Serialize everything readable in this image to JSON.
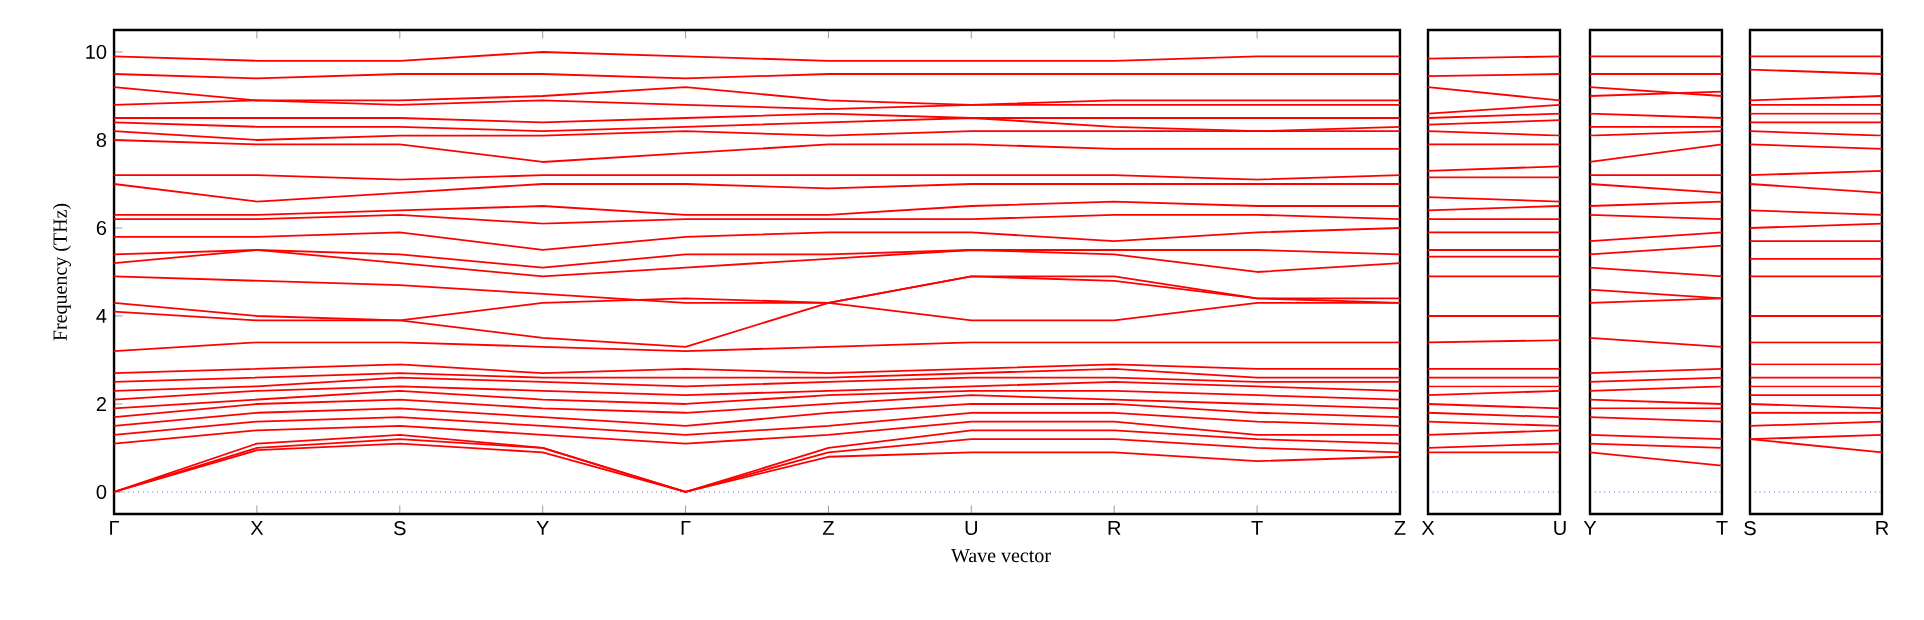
{
  "chart_data": [
    {
      "type": "line",
      "xlabel": "Wave vector",
      "ylabel": "Frequency (THz)",
      "categories": [
        "Γ",
        "X",
        "S",
        "Y",
        "Γ",
        "Z",
        "U",
        "R",
        "T",
        "Z"
      ],
      "ylim": [
        -0.5,
        10.5
      ],
      "yticks": [
        0,
        2,
        4,
        6,
        8,
        10
      ],
      "ref_lines": [
        {
          "axis": "y",
          "value": 0,
          "color": "#0000ff",
          "line_style": "dotted"
        }
      ],
      "series": [
        {
          "color": "#ff0000",
          "values": [
            0,
            0.95,
            1.1,
            0.9,
            0,
            0.8,
            0.9,
            0.9,
            0.7,
            0.8
          ]
        },
        {
          "color": "#ff0000",
          "values": [
            0,
            1.0,
            1.2,
            1.0,
            0,
            0.9,
            1.2,
            1.2,
            1.0,
            0.9
          ]
        },
        {
          "color": "#ff0000",
          "values": [
            0,
            1.1,
            1.3,
            1.0,
            0,
            1.0,
            1.4,
            1.4,
            1.2,
            1.1
          ]
        },
        {
          "color": "#ff0000",
          "values": [
            1.1,
            1.4,
            1.5,
            1.3,
            1.1,
            1.3,
            1.6,
            1.6,
            1.3,
            1.3
          ]
        },
        {
          "color": "#ff0000",
          "values": [
            1.3,
            1.6,
            1.7,
            1.5,
            1.3,
            1.5,
            1.8,
            1.8,
            1.6,
            1.5
          ]
        },
        {
          "color": "#ff0000",
          "values": [
            1.5,
            1.8,
            1.9,
            1.7,
            1.5,
            1.8,
            2.0,
            2.0,
            1.8,
            1.7
          ]
        },
        {
          "color": "#ff0000",
          "values": [
            1.7,
            2.0,
            2.1,
            1.9,
            1.8,
            2.0,
            2.2,
            2.1,
            2.0,
            1.9
          ]
        },
        {
          "color": "#ff0000",
          "values": [
            1.9,
            2.1,
            2.3,
            2.1,
            2.0,
            2.2,
            2.3,
            2.3,
            2.2,
            2.1
          ]
        },
        {
          "color": "#ff0000",
          "values": [
            2.1,
            2.3,
            2.4,
            2.3,
            2.2,
            2.3,
            2.4,
            2.5,
            2.4,
            2.3
          ]
        },
        {
          "color": "#ff0000",
          "values": [
            2.3,
            2.4,
            2.6,
            2.5,
            2.4,
            2.5,
            2.6,
            2.6,
            2.5,
            2.5
          ]
        },
        {
          "color": "#ff0000",
          "values": [
            2.5,
            2.6,
            2.7,
            2.6,
            2.6,
            2.6,
            2.7,
            2.8,
            2.6,
            2.6
          ]
        },
        {
          "color": "#ff0000",
          "values": [
            2.7,
            2.8,
            2.9,
            2.7,
            2.8,
            2.7,
            2.8,
            2.9,
            2.8,
            2.8
          ]
        },
        {
          "color": "#ff0000",
          "values": [
            3.2,
            3.4,
            3.4,
            3.3,
            3.2,
            3.3,
            3.4,
            3.4,
            3.4,
            3.4
          ]
        },
        {
          "color": "#ff0000",
          "values": [
            4.1,
            3.9,
            3.9,
            3.5,
            3.3,
            4.3,
            3.9,
            3.9,
            4.3,
            4.3
          ]
        },
        {
          "color": "#ff0000",
          "values": [
            4.3,
            4.0,
            3.9,
            4.3,
            4.4,
            4.3,
            4.9,
            4.9,
            4.4,
            4.3
          ]
        },
        {
          "color": "#ff0000",
          "values": [
            4.9,
            4.8,
            4.7,
            4.5,
            4.3,
            4.3,
            4.9,
            4.8,
            4.4,
            4.4
          ]
        },
        {
          "color": "#ff0000",
          "values": [
            5.2,
            5.5,
            5.2,
            4.9,
            5.1,
            5.3,
            5.5,
            5.4,
            5.0,
            5.2
          ]
        },
        {
          "color": "#ff0000",
          "values": [
            5.4,
            5.5,
            5.4,
            5.1,
            5.4,
            5.4,
            5.5,
            5.5,
            5.5,
            5.4
          ]
        },
        {
          "color": "#ff0000",
          "values": [
            5.8,
            5.8,
            5.9,
            5.5,
            5.8,
            5.9,
            5.9,
            5.7,
            5.9,
            6.0
          ]
        },
        {
          "color": "#ff0000",
          "values": [
            6.2,
            6.2,
            6.3,
            6.1,
            6.2,
            6.2,
            6.2,
            6.3,
            6.3,
            6.2
          ]
        },
        {
          "color": "#ff0000",
          "values": [
            6.3,
            6.3,
            6.4,
            6.5,
            6.3,
            6.3,
            6.5,
            6.6,
            6.5,
            6.5
          ]
        },
        {
          "color": "#ff0000",
          "values": [
            7.0,
            6.6,
            6.8,
            7.0,
            7.0,
            6.9,
            7.0,
            7.0,
            7.0,
            7.0
          ]
        },
        {
          "color": "#ff0000",
          "values": [
            7.2,
            7.2,
            7.1,
            7.2,
            7.2,
            7.2,
            7.2,
            7.2,
            7.1,
            7.2
          ]
        },
        {
          "color": "#ff0000",
          "values": [
            8.0,
            7.9,
            7.9,
            7.5,
            7.7,
            7.9,
            7.9,
            7.8,
            7.8,
            7.8
          ]
        },
        {
          "color": "#ff0000",
          "values": [
            8.2,
            8.0,
            8.1,
            8.1,
            8.2,
            8.1,
            8.2,
            8.2,
            8.2,
            8.2
          ]
        },
        {
          "color": "#ff0000",
          "values": [
            8.4,
            8.3,
            8.3,
            8.2,
            8.3,
            8.4,
            8.5,
            8.3,
            8.2,
            8.3
          ]
        },
        {
          "color": "#ff0000",
          "values": [
            8.5,
            8.5,
            8.5,
            8.4,
            8.5,
            8.6,
            8.5,
            8.5,
            8.5,
            8.5
          ]
        },
        {
          "color": "#ff0000",
          "values": [
            8.8,
            8.9,
            8.8,
            8.9,
            8.8,
            8.7,
            8.8,
            8.8,
            8.8,
            8.8
          ]
        },
        {
          "color": "#ff0000",
          "values": [
            9.2,
            8.9,
            8.9,
            9.0,
            9.2,
            8.9,
            8.8,
            8.9,
            8.9,
            8.9
          ]
        },
        {
          "color": "#ff0000",
          "values": [
            9.5,
            9.4,
            9.5,
            9.5,
            9.4,
            9.5,
            9.5,
            9.5,
            9.5,
            9.5
          ]
        },
        {
          "color": "#ff0000",
          "values": [
            9.9,
            9.8,
            9.8,
            10.0,
            9.9,
            9.8,
            9.8,
            9.8,
            9.9,
            9.9
          ]
        }
      ]
    },
    {
      "type": "line",
      "tick_labels": "x",
      "categories": [
        "X",
        "U"
      ],
      "yticks": [
        0,
        2,
        4,
        6,
        8,
        10
      ],
      "ref_lines": [
        {
          "axis": "y",
          "value": 0,
          "color": "#0000ff",
          "line_style": "dotted"
        }
      ],
      "series": [
        {
          "color": "#ff0000",
          "values": [
            9.85,
            9.9
          ]
        },
        {
          "color": "#ff0000",
          "values": [
            9.45,
            9.5
          ]
        },
        {
          "color": "#ff0000",
          "values": [
            9.2,
            8.9
          ]
        },
        {
          "color": "#ff0000",
          "values": [
            8.6,
            8.8
          ]
        },
        {
          "color": "#ff0000",
          "values": [
            8.5,
            8.6
          ]
        },
        {
          "color": "#ff0000",
          "values": [
            8.35,
            8.45
          ]
        },
        {
          "color": "#ff0000",
          "values": [
            8.2,
            8.1
          ]
        },
        {
          "color": "#ff0000",
          "values": [
            7.9,
            7.9
          ]
        },
        {
          "color": "#ff0000",
          "values": [
            7.3,
            7.4
          ]
        },
        {
          "color": "#ff0000",
          "values": [
            7.15,
            7.15
          ]
        },
        {
          "color": "#ff0000",
          "values": [
            6.7,
            6.6
          ]
        },
        {
          "color": "#ff0000",
          "values": [
            6.4,
            6.5
          ]
        },
        {
          "color": "#ff0000",
          "values": [
            6.2,
            6.2
          ]
        },
        {
          "color": "#ff0000",
          "values": [
            5.9,
            5.9
          ]
        },
        {
          "color": "#ff0000",
          "values": [
            5.5,
            5.5
          ]
        },
        {
          "color": "#ff0000",
          "values": [
            5.35,
            5.35
          ]
        },
        {
          "color": "#ff0000",
          "values": [
            4.9,
            4.9
          ]
        },
        {
          "color": "#ff0000",
          "values": [
            4.0,
            4.0
          ]
        },
        {
          "color": "#ff0000",
          "values": [
            3.4,
            3.45
          ]
        },
        {
          "color": "#ff0000",
          "values": [
            2.8,
            2.8
          ]
        },
        {
          "color": "#ff0000",
          "values": [
            2.6,
            2.6
          ]
        },
        {
          "color": "#ff0000",
          "values": [
            2.4,
            2.4
          ]
        },
        {
          "color": "#ff0000",
          "values": [
            2.2,
            2.3
          ]
        },
        {
          "color": "#ff0000",
          "values": [
            2.0,
            1.9
          ]
        },
        {
          "color": "#ff0000",
          "values": [
            1.8,
            1.7
          ]
        },
        {
          "color": "#ff0000",
          "values": [
            1.6,
            1.5
          ]
        },
        {
          "color": "#ff0000",
          "values": [
            1.3,
            1.4
          ]
        },
        {
          "color": "#ff0000",
          "values": [
            1.0,
            1.1
          ]
        },
        {
          "color": "#ff0000",
          "values": [
            0.9,
            0.9
          ]
        }
      ]
    },
    {
      "type": "line",
      "tick_labels": "x",
      "categories": [
        "Y",
        "T"
      ],
      "yticks": [
        0,
        2,
        4,
        6,
        8,
        10
      ],
      "ref_lines": [
        {
          "axis": "y",
          "value": 0,
          "color": "#0000ff",
          "line_style": "dotted"
        }
      ],
      "series": [
        {
          "color": "#ff0000",
          "values": [
            9.9,
            9.9
          ]
        },
        {
          "color": "#ff0000",
          "values": [
            9.5,
            9.5
          ]
        },
        {
          "color": "#ff0000",
          "values": [
            9.2,
            9.0
          ]
        },
        {
          "color": "#ff0000",
          "values": [
            9.0,
            9.1
          ]
        },
        {
          "color": "#ff0000",
          "values": [
            8.6,
            8.5
          ]
        },
        {
          "color": "#ff0000",
          "values": [
            8.3,
            8.3
          ]
        },
        {
          "color": "#ff0000",
          "values": [
            8.1,
            8.2
          ]
        },
        {
          "color": "#ff0000",
          "values": [
            7.5,
            7.9
          ]
        },
        {
          "color": "#ff0000",
          "values": [
            7.2,
            7.2
          ]
        },
        {
          "color": "#ff0000",
          "values": [
            7.0,
            6.8
          ]
        },
        {
          "color": "#ff0000",
          "values": [
            6.5,
            6.6
          ]
        },
        {
          "color": "#ff0000",
          "values": [
            6.3,
            6.2
          ]
        },
        {
          "color": "#ff0000",
          "values": [
            5.7,
            5.9
          ]
        },
        {
          "color": "#ff0000",
          "values": [
            5.4,
            5.6
          ]
        },
        {
          "color": "#ff0000",
          "values": [
            5.1,
            4.9
          ]
        },
        {
          "color": "#ff0000",
          "values": [
            4.6,
            4.4
          ]
        },
        {
          "color": "#ff0000",
          "values": [
            4.3,
            4.4
          ]
        },
        {
          "color": "#ff0000",
          "values": [
            3.5,
            3.3
          ]
        },
        {
          "color": "#ff0000",
          "values": [
            2.7,
            2.8
          ]
        },
        {
          "color": "#ff0000",
          "values": [
            2.5,
            2.6
          ]
        },
        {
          "color": "#ff0000",
          "values": [
            2.3,
            2.4
          ]
        },
        {
          "color": "#ff0000",
          "values": [
            2.1,
            2.0
          ]
        },
        {
          "color": "#ff0000",
          "values": [
            1.9,
            1.9
          ]
        },
        {
          "color": "#ff0000",
          "values": [
            1.7,
            1.6
          ]
        },
        {
          "color": "#ff0000",
          "values": [
            1.3,
            1.2
          ]
        },
        {
          "color": "#ff0000",
          "values": [
            1.1,
            1.0
          ]
        },
        {
          "color": "#ff0000",
          "values": [
            0.9,
            0.6
          ]
        }
      ]
    },
    {
      "type": "line",
      "tick_labels": "x",
      "categories": [
        "S",
        "R"
      ],
      "yticks": [
        0,
        2,
        4,
        6,
        8,
        10
      ],
      "ref_lines": [
        {
          "axis": "y",
          "value": 0,
          "color": "#0000ff",
          "line_style": "dotted"
        }
      ],
      "series": [
        {
          "color": "#ff0000",
          "values": [
            9.9,
            9.9
          ]
        },
        {
          "color": "#ff0000",
          "values": [
            9.6,
            9.5
          ]
        },
        {
          "color": "#ff0000",
          "values": [
            8.9,
            9.0
          ]
        },
        {
          "color": "#ff0000",
          "values": [
            8.8,
            8.8
          ]
        },
        {
          "color": "#ff0000",
          "values": [
            8.6,
            8.6
          ]
        },
        {
          "color": "#ff0000",
          "values": [
            8.4,
            8.4
          ]
        },
        {
          "color": "#ff0000",
          "values": [
            8.2,
            8.1
          ]
        },
        {
          "color": "#ff0000",
          "values": [
            7.9,
            7.8
          ]
        },
        {
          "color": "#ff0000",
          "values": [
            7.2,
            7.3
          ]
        },
        {
          "color": "#ff0000",
          "values": [
            7.0,
            6.8
          ]
        },
        {
          "color": "#ff0000",
          "values": [
            6.4,
            6.3
          ]
        },
        {
          "color": "#ff0000",
          "values": [
            6.0,
            6.1
          ]
        },
        {
          "color": "#ff0000",
          "values": [
            5.7,
            5.7
          ]
        },
        {
          "color": "#ff0000",
          "values": [
            5.3,
            5.3
          ]
        },
        {
          "color": "#ff0000",
          "values": [
            4.9,
            4.9
          ]
        },
        {
          "color": "#ff0000",
          "values": [
            4.0,
            4.0
          ]
        },
        {
          "color": "#ff0000",
          "values": [
            3.4,
            3.4
          ]
        },
        {
          "color": "#ff0000",
          "values": [
            2.9,
            2.9
          ]
        },
        {
          "color": "#ff0000",
          "values": [
            2.6,
            2.6
          ]
        },
        {
          "color": "#ff0000",
          "values": [
            2.4,
            2.4
          ]
        },
        {
          "color": "#ff0000",
          "values": [
            2.2,
            2.2
          ]
        },
        {
          "color": "#ff0000",
          "values": [
            2.0,
            1.9
          ]
        },
        {
          "color": "#ff0000",
          "values": [
            1.8,
            1.8
          ]
        },
        {
          "color": "#ff0000",
          "values": [
            1.5,
            1.6
          ]
        },
        {
          "color": "#ff0000",
          "values": [
            1.2,
            1.3
          ]
        },
        {
          "color": "#ff0000",
          "values": [
            1.2,
            0.9
          ]
        }
      ]
    }
  ]
}
